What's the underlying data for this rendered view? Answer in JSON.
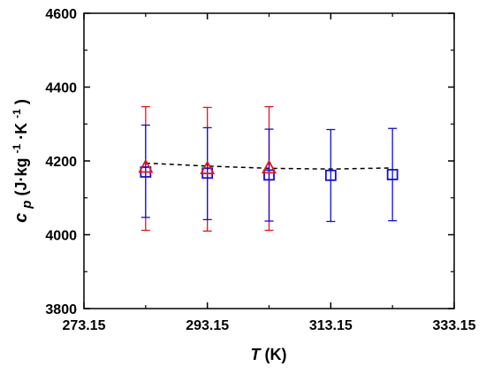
{
  "chart_data": {
    "type": "scatter",
    "xlabel": {
      "symbol": "T",
      "unit": "(K)"
    },
    "ylabel": {
      "symbol_main": "c",
      "symbol_sub": "p",
      "unit_open": " (J·kg",
      "exp1": "-1",
      "unit_mid": "·K",
      "exp2": "-1",
      "unit_close": ")"
    },
    "xlim": [
      273.15,
      333.15
    ],
    "ylim": [
      3800,
      4600
    ],
    "xticks": [
      273.15,
      293.15,
      313.15,
      333.15
    ],
    "xtick_labels": [
      "273.15",
      "293.15",
      "313.15",
      "333.15"
    ],
    "yticks": [
      3800,
      4000,
      4200,
      4400,
      4600
    ],
    "ytick_labels": [
      "3800",
      "4000",
      "4200",
      "4400",
      "4600"
    ],
    "grid": false,
    "legend": null,
    "series": [
      {
        "marker": "triangle",
        "color": "#e8141c",
        "x": [
          283.15,
          293.15,
          303.15
        ],
        "y": [
          4182,
          4178,
          4180
        ],
        "err_low": [
          4012,
          4010,
          4012
        ],
        "err_high": [
          4347,
          4345,
          4347
        ]
      },
      {
        "marker": "square",
        "color": "#1010d8",
        "x": [
          283.15,
          293.15,
          303.15,
          313.15,
          323.15
        ],
        "y": [
          4170,
          4167,
          4162,
          4161,
          4163
        ],
        "err_low": [
          4047,
          4041,
          4037,
          4036,
          4038
        ],
        "err_high": [
          4297,
          4290,
          4286,
          4285,
          4288
        ]
      },
      {
        "type": "line",
        "style": "dashed",
        "color": "#000000",
        "x": [
          283.15,
          293.15,
          303.15,
          313.15,
          323.15
        ],
        "y": [
          4194,
          4186,
          4180,
          4178,
          4181
        ]
      }
    ]
  }
}
